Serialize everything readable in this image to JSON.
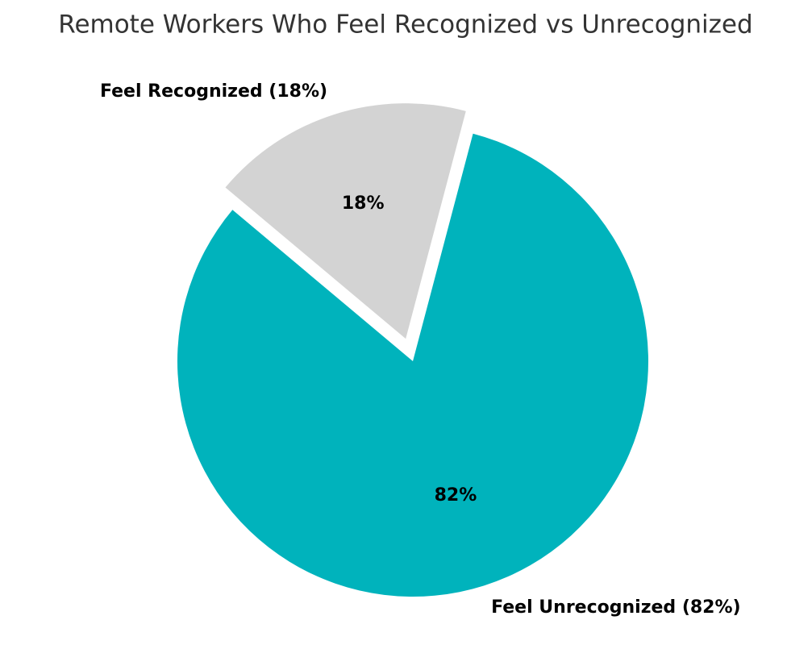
{
  "chart_data": {
    "type": "pie",
    "title": "Remote Workers Who Feel Recognized vs Unrecognized",
    "categories": [
      "Feel Recognized (18%)",
      "Feel Unrecognized (82%)"
    ],
    "values": [
      18,
      82
    ],
    "value_labels": [
      "18%",
      "82%"
    ],
    "colors": [
      "#d3d3d3",
      "#00b3bc"
    ]
  }
}
